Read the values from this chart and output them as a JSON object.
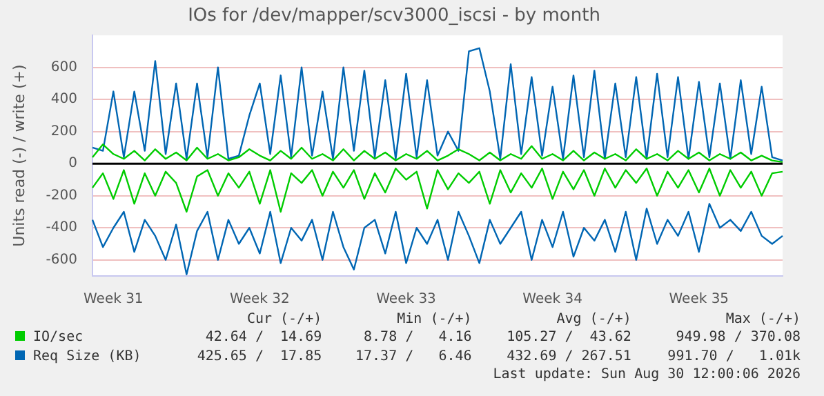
{
  "chart_data": {
    "type": "line",
    "title": "IOs for /dev/mapper/scv3000_iscsi - by month",
    "ylabel": "Units read (-) / write (+)",
    "categories": [
      null,
      null,
      "Week 31",
      null,
      null,
      null,
      null,
      null,
      null,
      null,
      null,
      null,
      null,
      null,
      null,
      null,
      "Week 32",
      null,
      null,
      null,
      null,
      null,
      null,
      null,
      null,
      null,
      null,
      null,
      null,
      null,
      "Week 33",
      null,
      null,
      null,
      null,
      null,
      null,
      null,
      null,
      null,
      null,
      null,
      null,
      null,
      "Week 34",
      null,
      null,
      null,
      null,
      null,
      null,
      null,
      null,
      null,
      null,
      null,
      null,
      null,
      "Week 35",
      null,
      null,
      null,
      null,
      null,
      null,
      null,
      null
    ],
    "ylim": [
      -700,
      800
    ],
    "yticks": [
      -600,
      -400,
      -200,
      0,
      200,
      400,
      600
    ],
    "grid": "y",
    "legend": "bottom",
    "marker": "none",
    "line_style": "solid",
    "ref_lines": [
      {
        "axis": "y",
        "value": 0,
        "color": "#000000"
      }
    ],
    "series": [
      {
        "name": "IO/sec",
        "color": "#00cc00",
        "values": [
          40,
          120,
          60,
          30,
          80,
          20,
          90,
          30,
          70,
          20,
          100,
          30,
          60,
          20,
          40,
          90,
          50,
          20,
          80,
          30,
          100,
          30,
          60,
          20,
          90,
          20,
          80,
          30,
          70,
          20,
          60,
          30,
          80,
          20,
          50,
          90,
          60,
          20,
          70,
          20,
          60,
          30,
          110,
          30,
          60,
          20,
          80,
          20,
          70,
          30,
          60,
          20,
          90,
          30,
          60,
          20,
          80,
          30,
          70,
          20,
          60,
          30,
          70,
          20,
          50,
          20,
          10
        ]
      },
      {
        "color": "#00cc00",
        "values": [
          -150,
          -60,
          -220,
          -40,
          -250,
          -60,
          -200,
          -50,
          -120,
          -300,
          -80,
          -40,
          -200,
          -60,
          -150,
          -50,
          -250,
          -40,
          -300,
          -60,
          -120,
          -40,
          -200,
          -50,
          -150,
          -40,
          -220,
          -60,
          -180,
          -30,
          -100,
          -50,
          -280,
          -40,
          -160,
          -60,
          -120,
          -50,
          -250,
          -40,
          -180,
          -60,
          -150,
          -30,
          -220,
          -50,
          -160,
          -40,
          -200,
          -30,
          -150,
          -40,
          -120,
          -30,
          -200,
          -50,
          -150,
          -40,
          -180,
          -30,
          -200,
          -40,
          -150,
          -50,
          -200,
          -60,
          -50
        ]
      },
      {
        "name": "Req Size (KB)",
        "color": "#0066b3",
        "values": [
          100,
          80,
          450,
          40,
          450,
          80,
          640,
          60,
          500,
          30,
          500,
          40,
          600,
          30,
          50,
          300,
          500,
          60,
          550,
          40,
          600,
          50,
          450,
          30,
          600,
          80,
          580,
          40,
          520,
          30,
          560,
          40,
          520,
          50,
          200,
          80,
          700,
          720,
          450,
          30,
          620,
          60,
          540,
          50,
          480,
          30,
          550,
          40,
          580,
          30,
          500,
          40,
          540,
          30,
          560,
          40,
          540,
          30,
          510,
          40,
          500,
          30,
          520,
          60,
          480,
          40,
          20
        ]
      },
      {
        "color": "#0066b3",
        "values": [
          -350,
          -520,
          -400,
          -300,
          -550,
          -350,
          -450,
          -600,
          -380,
          -690,
          -420,
          -300,
          -600,
          -350,
          -500,
          -400,
          -560,
          -300,
          -620,
          -400,
          -480,
          -350,
          -600,
          -300,
          -520,
          -660,
          -400,
          -350,
          -560,
          -300,
          -620,
          -400,
          -500,
          -350,
          -600,
          -300,
          -450,
          -620,
          -350,
          -500,
          -400,
          -300,
          -600,
          -350,
          -520,
          -300,
          -580,
          -400,
          -480,
          -350,
          -550,
          -300,
          -600,
          -280,
          -500,
          -350,
          -450,
          -300,
          -550,
          -250,
          -400,
          -350,
          -420,
          -300,
          -450,
          -500,
          -450
        ]
      }
    ],
    "annotations": [
      "Cur (-/+)",
      "Min (-/+)",
      "Avg (-/+)",
      "Max (-/+)",
      "42.64 /  14.69",
      "8.78 /   4.16",
      "105.27 /  43.62",
      "949.98 / 370.08",
      "425.65 /  17.85",
      "17.37 /   6.46",
      "432.69 / 267.51",
      "991.70 /   1.01k",
      "Last update: Sun Aug 30 12:00:06 2026"
    ]
  }
}
